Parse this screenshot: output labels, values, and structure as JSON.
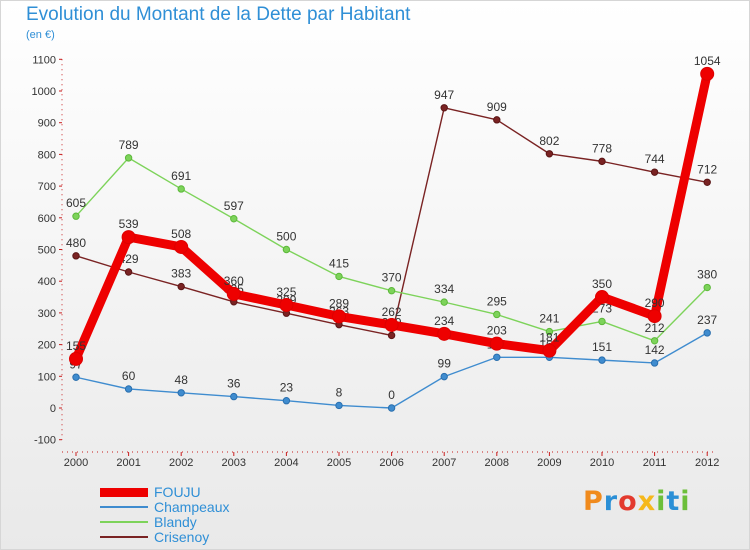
{
  "title": "Evolution du Montant de la Dette par Habitant",
  "subtitle": "(en €)",
  "logo": {
    "brand": "Proxiti",
    "letters": [
      "P",
      "r",
      "o",
      "x",
      "i",
      "t",
      "i"
    ]
  },
  "chart_data": {
    "type": "line",
    "title": "Evolution du Montant de la Dette par Habitant",
    "subtitle": "(en €)",
    "xlabel": "",
    "ylabel": "",
    "x": [
      "2000",
      "2001",
      "2002",
      "2003",
      "2004",
      "2005",
      "2006",
      "2007",
      "2008",
      "2009",
      "2010",
      "2011",
      "2012"
    ],
    "ylim": [
      -100,
      1100
    ],
    "yticks": [
      -100,
      0,
      100,
      200,
      300,
      400,
      500,
      600,
      700,
      800,
      900,
      1000,
      1100
    ],
    "grid": false,
    "legend_position": "bottom-left",
    "series": [
      {
        "name": "Crisenoy",
        "color": "#7a2323",
        "values": [
          480,
          429,
          383,
          335,
          299,
          263,
          229,
          947,
          909,
          802,
          778,
          744,
          712
        ],
        "labels": [
          "480",
          "429",
          "383",
          "335",
          "299",
          "263",
          "229",
          "947",
          "909",
          "802",
          "778",
          "744",
          "712"
        ]
      },
      {
        "name": "Blandy",
        "color": "#7dd35a",
        "values": [
          605,
          789,
          691,
          597,
          500,
          415,
          370,
          334,
          295,
          241,
          273,
          212,
          380
        ],
        "labels": [
          "605",
          "789",
          "691",
          "597",
          "500",
          "415",
          "370",
          "334",
          "295",
          "241",
          "273",
          "212",
          "380"
        ]
      },
      {
        "name": "Champeaux",
        "color": "#3f8ccf",
        "values": [
          97,
          60,
          48,
          36,
          23,
          8,
          0,
          99,
          160,
          160,
          151,
          142,
          237
        ],
        "labels": [
          "97",
          "60",
          "48",
          "36",
          "23",
          "8",
          "0",
          "99",
          "160",
          "160",
          "151",
          "142",
          "237"
        ]
      },
      {
        "name": "FOUJU",
        "color": "#ee0000",
        "values": [
          155,
          539,
          508,
          360,
          325,
          289,
          262,
          234,
          203,
          181,
          350,
          290,
          1054
        ],
        "labels": [
          "155",
          "539",
          "508",
          "360",
          "325",
          "289",
          "262",
          "234",
          "203",
          "181",
          "350",
          "290",
          "1054"
        ]
      }
    ]
  },
  "legend": [
    {
      "name": "FOUJU",
      "color": "#ee0000",
      "thickness": 9
    },
    {
      "name": "Champeaux",
      "color": "#3f8ccf",
      "thickness": 2
    },
    {
      "name": "Blandy",
      "color": "#7dd35a",
      "thickness": 2
    },
    {
      "name": "Crisenoy",
      "color": "#7a2323",
      "thickness": 2
    }
  ]
}
